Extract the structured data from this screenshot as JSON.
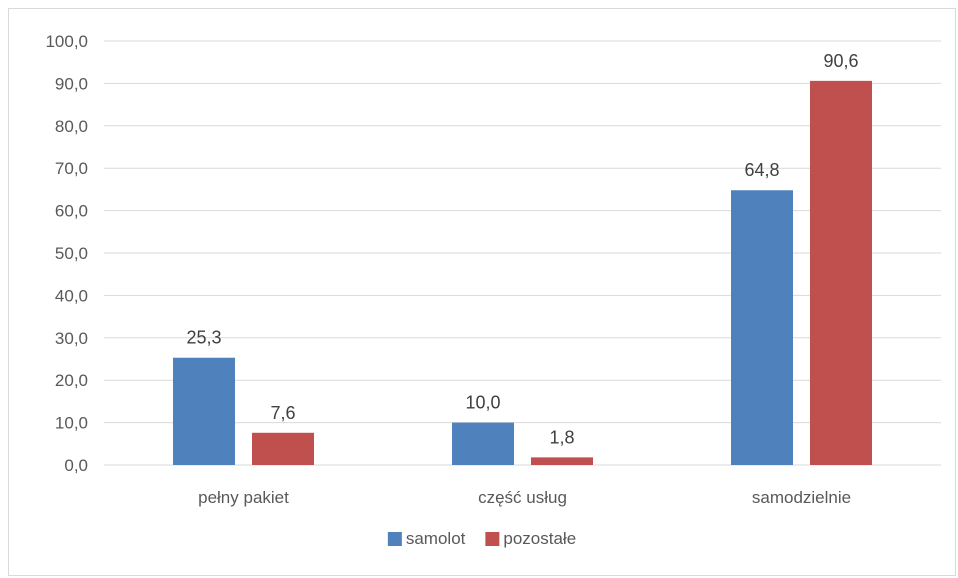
{
  "chart_data": {
    "type": "bar",
    "categories": [
      "pełny pakiet",
      "część usług",
      "samodzielnie"
    ],
    "series": [
      {
        "name": "samolot",
        "values": [
          25.3,
          10.0,
          64.8
        ],
        "labels": [
          "25,3",
          "10,0",
          "64,8"
        ],
        "color": "#4f81bd"
      },
      {
        "name": "pozostałe",
        "values": [
          7.6,
          1.8,
          90.6
        ],
        "labels": [
          "7,6",
          "1,8",
          "90,6"
        ],
        "color": "#c0504d"
      }
    ],
    "ylim": [
      0,
      100
    ],
    "yticks": [
      0,
      10,
      20,
      30,
      40,
      50,
      60,
      70,
      80,
      90,
      100
    ],
    "ytick_labels": [
      "0,0",
      "10,0",
      "20,0",
      "30,0",
      "40,0",
      "50,0",
      "60,0",
      "70,0",
      "80,0",
      "90,0",
      "100,0"
    ],
    "title": "",
    "xlabel": "",
    "ylabel": "",
    "grid": true,
    "legend_position": "bottom",
    "gridline_color": "#d9d9d9"
  }
}
